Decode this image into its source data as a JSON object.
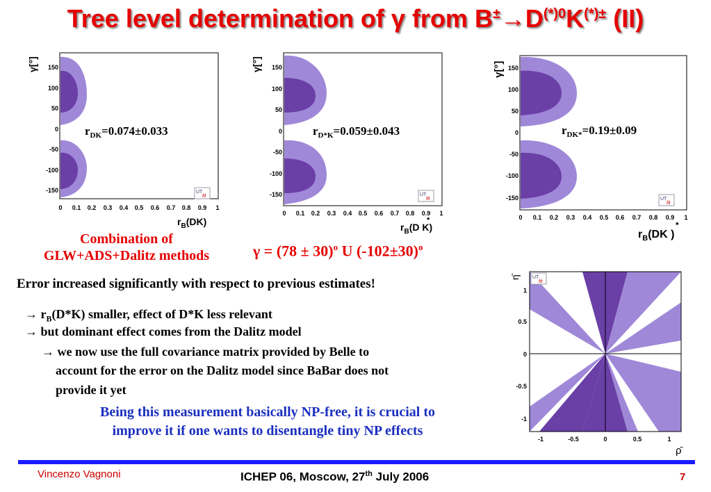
{
  "title": {
    "prefix": "Tree level determination of ",
    "gamma": "γ",
    "mid": " from B",
    "pm1": "±",
    "arrow": "→",
    "d": "D",
    "sup1": "(*)0",
    "k": "K",
    "sup2": "(*)±",
    "suffix": " (II)"
  },
  "plots": [
    {
      "ylabel": "γ[°]",
      "xlabel": "r",
      "xlabel_sub": "B",
      "xlabel_paren": "(DK)",
      "r_main": "r",
      "r_sub": "DK",
      "r_value": "=0.074±0.033"
    },
    {
      "ylabel": "γ[°]",
      "xlabel": "r",
      "xlabel_sub": "B",
      "xlabel_paren": "(D K)",
      "xlabel_star": "*",
      "r_main": "r",
      "r_sub": "D*K",
      "r_value": "=0.059±0.043"
    },
    {
      "ylabel": "γ[°]",
      "xlabel": "r",
      "xlabel_sub": "B",
      "xlabel_paren": "(DK )",
      "xlabel_star": "*",
      "r_main": "r",
      "r_sub": "DK*",
      "r_value": "=0.19±0.09"
    }
  ],
  "y_ticks": [
    "150",
    "100",
    "50",
    "0",
    "-50",
    "-100",
    "-150"
  ],
  "x_ticks": [
    "0",
    "0.1",
    "0.2",
    "0.3",
    "0.4",
    "0.5",
    "0.6",
    "0.7",
    "0.8",
    "0.9",
    "1"
  ],
  "logo": {
    "ut": "UT",
    "fit": "fit"
  },
  "combination": {
    "line1": "Combination of",
    "line2": "GLW+ADS+Dalitz methods"
  },
  "gamma_result": {
    "text": "γ = (78 ± 30)",
    "sup1": "o",
    "mid": " U (-102±30)",
    "sup2": "o"
  },
  "error_line": "Error increased significantly with respect to previous estimates!",
  "bullets": [
    {
      "arrow": "→",
      "pre": " r",
      "sub": "B",
      "post": "(D*K) smaller, effect of D*K less relevant"
    },
    {
      "arrow": "→",
      "text": " but dominant effect comes from the Dalitz model"
    },
    {
      "arrow": "→",
      "text": " we now use the full covariance matrix provided by Belle to"
    },
    {
      "text": "account for the error on the Dalitz model since BaBar does not"
    },
    {
      "text": "provide it yet"
    }
  ],
  "np_text": {
    "line1": "Being this measurement basically NP-free, it is crucial to",
    "line2": "improve it if one wants to disentangle tiny NP effects"
  },
  "rhoeta": {
    "xlabel": "ρ̄",
    "ylabel": "η̄",
    "x_ticks": [
      "-1",
      "-0.5",
      "0",
      "0.5",
      "1"
    ],
    "y_ticks": [
      "1",
      "0.5",
      "0",
      "-0.5",
      "-1"
    ]
  },
  "footer": {
    "author": "Vincenzo Vagnoni",
    "conf_pre": "ICHEP 06, Moscow, 27",
    "conf_sup": "th",
    "conf_post": " July 2006",
    "page": "7"
  },
  "colors": {
    "title_red": "#e60000",
    "blue_text": "#1a2fbf",
    "footer_bar": "#1a1aff",
    "light_purple": "#9f88d8",
    "dark_purple": "#6a3fa6"
  }
}
